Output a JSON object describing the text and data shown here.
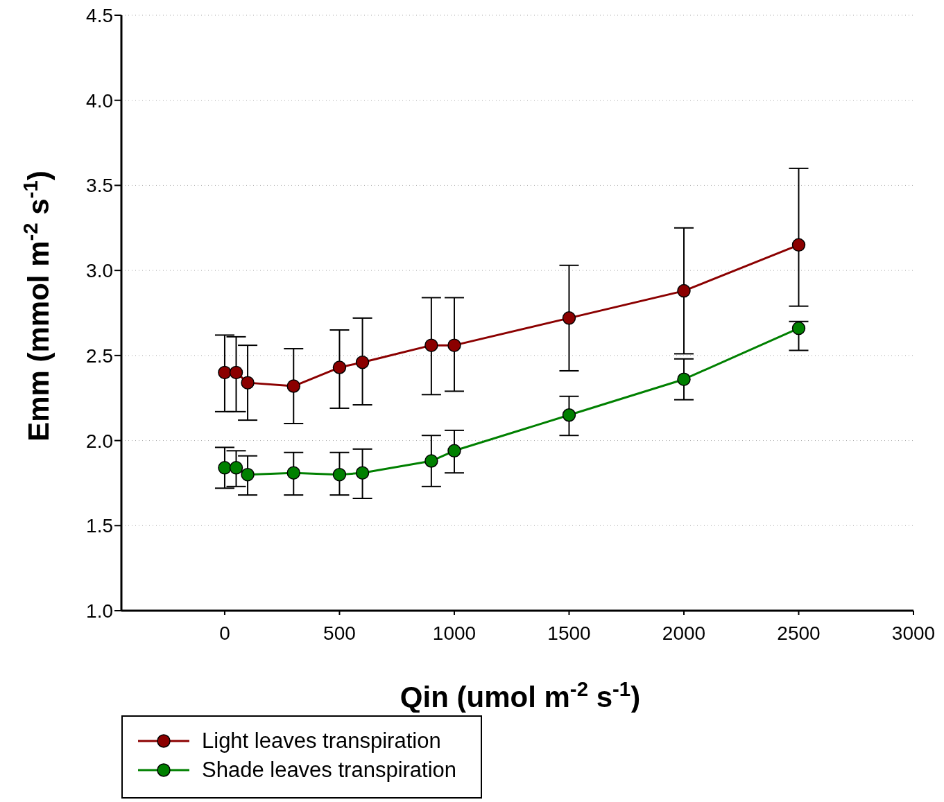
{
  "chart_data": {
    "type": "line",
    "xlabel": "Qin (umol m$^{-2}$ s$^{-1}$)",
    "ylabel": "Emm (mmol m$^{-2}$ s$^{-1}$)",
    "x": [
      0,
      50,
      100,
      300,
      500,
      600,
      900,
      1000,
      1500,
      2000,
      2500
    ],
    "series": [
      {
        "name": "Light leaves transpiration",
        "color": "#8b0000",
        "values": [
          2.4,
          2.4,
          2.34,
          2.32,
          2.43,
          2.46,
          2.56,
          2.56,
          2.72,
          2.88,
          3.15
        ],
        "errors": [
          [
            2.17,
            2.62
          ],
          [
            2.17,
            2.61
          ],
          [
            2.12,
            2.56
          ],
          [
            2.1,
            2.54
          ],
          [
            2.19,
            2.65
          ],
          [
            2.21,
            2.72
          ],
          [
            2.27,
            2.84
          ],
          [
            2.29,
            2.84
          ],
          [
            2.41,
            3.03
          ],
          [
            2.51,
            3.25
          ],
          [
            2.79,
            3.6
          ]
        ]
      },
      {
        "name": "Shade leaves transpiration",
        "color": "#008000",
        "values": [
          1.84,
          1.84,
          1.8,
          1.81,
          1.8,
          1.81,
          1.88,
          1.94,
          2.15,
          2.36,
          2.66
        ],
        "errors": [
          [
            1.72,
            1.96
          ],
          [
            1.73,
            1.94
          ],
          [
            1.68,
            1.91
          ],
          [
            1.68,
            1.93
          ],
          [
            1.68,
            1.93
          ],
          [
            1.66,
            1.95
          ],
          [
            1.73,
            2.03
          ],
          [
            1.81,
            2.06
          ],
          [
            2.03,
            2.26
          ],
          [
            2.24,
            2.48
          ],
          [
            2.53,
            2.7
          ]
        ]
      }
    ],
    "xlim": [
      -450,
      3000
    ],
    "xticks": [
      0,
      500,
      1000,
      1500,
      2000,
      2500,
      3000
    ],
    "ylim": [
      1.0,
      4.5
    ],
    "yticks": [
      {
        "value": 1,
        "label": "1.0"
      },
      {
        "value": 1.5,
        "label": "1.5"
      },
      {
        "value": 2,
        "label": "2.0"
      },
      {
        "value": 2.5,
        "label": "2.5"
      },
      {
        "value": 3,
        "label": "3.0"
      },
      {
        "value": 3.5,
        "label": "3.5"
      },
      {
        "value": 4,
        "label": "4.0"
      },
      {
        "value": 4.5,
        "label": "4.5"
      }
    ],
    "grid": "y",
    "legend": "bottom",
    "marker": "circle",
    "line_style": "solid"
  }
}
